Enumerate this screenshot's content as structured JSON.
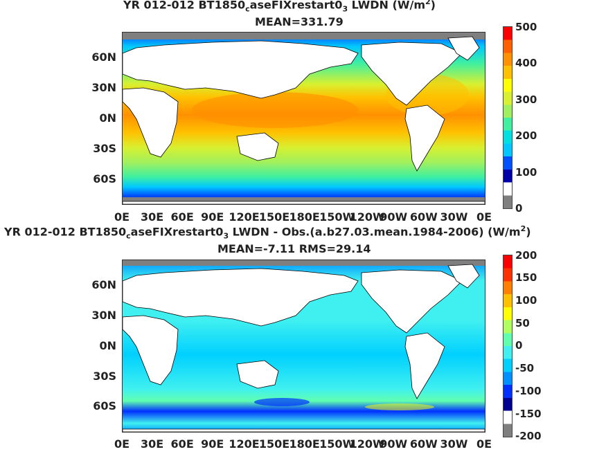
{
  "panels": [
    {
      "title_prefix": "YR 012-012 BT1850",
      "title_sub": "c",
      "title_mid": "aseFIXrestart0",
      "title_sub2": "3",
      "title_suffix": " LWDN (W/m",
      "title_sup": "2",
      "title_end": ")",
      "subtitle": "MEAN=331.79",
      "lat_ticks": [
        "60N",
        "30N",
        "0N",
        "30S",
        "60S"
      ],
      "lon_ticks": [
        "0E",
        "30E",
        "60E",
        "90E",
        "120E",
        "150E",
        "180E",
        "150W",
        "120W",
        "90W",
        "60W",
        "30W",
        "0E"
      ],
      "colorbar_ticks": [
        "500",
        "400",
        "300",
        "200",
        "100",
        "0"
      ],
      "colors": [
        "#7f7f7f",
        "#ffffff",
        "#0000aa",
        "#0050ff",
        "#00c8ff",
        "#00e0e0",
        "#40f0a0",
        "#9ef060",
        "#d8f030",
        "#ffff00",
        "#ffc000",
        "#ff9000",
        "#ff6000",
        "#ff0000"
      ]
    },
    {
      "title_prefix": "YR 012-012 BT1850",
      "title_sub": "c",
      "title_mid": "aseFIXrestart0",
      "title_sub2": "3",
      "title_suffix": " LWDN - Obs.(a.b27.03.mean.1984-2006) (W/m",
      "title_sup": "2",
      "title_end": ")",
      "subtitle": "MEAN=-7.11 RMS=29.14",
      "lat_ticks": [
        "60N",
        "30N",
        "0N",
        "30S",
        "60S"
      ],
      "lon_ticks": [
        "0E",
        "30E",
        "60E",
        "90E",
        "120E",
        "150E",
        "180E",
        "150W",
        "120W",
        "90W",
        "60W",
        "30W",
        "0E"
      ],
      "colorbar_ticks": [
        "200",
        "150",
        "100",
        "50",
        "0",
        "-50",
        "-100",
        "-150",
        "-200"
      ],
      "colors": [
        "#7f7f7f",
        "#ffffff",
        "#000090",
        "#0030ff",
        "#0090ff",
        "#00d0ff",
        "#40f0f0",
        "#60ffb0",
        "#b0ff60",
        "#ffff00",
        "#ffc000",
        "#ff8000",
        "#ff3000",
        "#ff0000"
      ]
    }
  ]
}
